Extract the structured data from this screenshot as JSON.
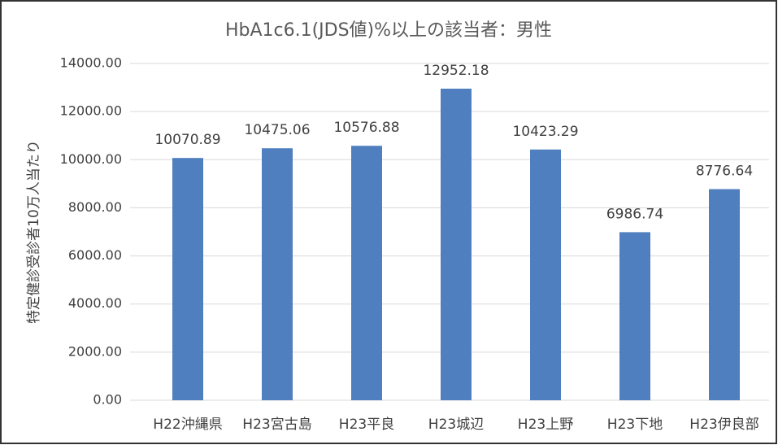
{
  "chart_data": {
    "type": "bar",
    "title": "HbA1c6.1(JDS値)%以上の該当者：男性",
    "y_label": "特定健診受診者10万人当たり",
    "categories": [
      "H22沖縄県",
      "H23宮古島",
      "H23平良",
      "H23城辺",
      "H23上野",
      "H23下地",
      "H23伊良部"
    ],
    "values": [
      10070.89,
      10475.06,
      10576.88,
      12952.18,
      10423.29,
      6986.74,
      8776.64
    ],
    "color": "#4f7fbf",
    "ylim": [
      0,
      14000
    ],
    "yticks": [
      {
        "value": 0,
        "label": "0.00"
      },
      {
        "value": 2000,
        "label": "2000.00"
      },
      {
        "value": 4000,
        "label": "4000.00"
      },
      {
        "value": 6000,
        "label": "6000.00"
      },
      {
        "value": 8000,
        "label": "8000.00"
      },
      {
        "value": 10000,
        "label": "10000.00"
      },
      {
        "value": 12000,
        "label": "12000.00"
      },
      {
        "value": 14000,
        "label": "14000.00"
      }
    ],
    "grid": true
  }
}
